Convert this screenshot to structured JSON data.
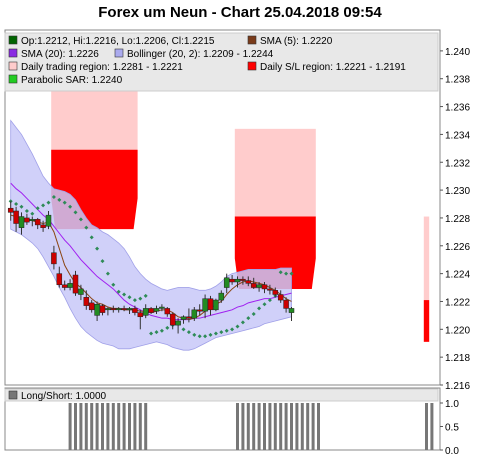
{
  "title": "Forex um Neun - Chart 25.04.2018 09:54",
  "legend": [
    {
      "label": "Op:1.2212, Hi:1.2216, Lo:1.2206, Cl:1.2215",
      "swatch": "#006400"
    },
    {
      "label": "SMA (5): 1.2220",
      "swatch": "#7a3b1a"
    },
    {
      "label": "SMA (20): 1.2226",
      "swatch": "#8a2be2"
    },
    {
      "label": "Bollinger (20, 2): 1.2209 - 1.2244",
      "swatch": "#aaaaee"
    },
    {
      "label": "Daily trading region: 1.2281 - 1.2221",
      "swatch": "#ffcccc"
    },
    {
      "label": "Daily S/L region: 1.2221 - 1.2191",
      "swatch": "#ff0000"
    },
    {
      "label": "Parabolic SAR: 1.2240",
      "swatch": "#22cc22"
    }
  ],
  "sub_legend": {
    "label": "Long/Short: 1.0000",
    "swatch": "#777777"
  },
  "colors": {
    "candle_up": "#228b22",
    "candle_down": "#cc0000",
    "sma5": "#8b4513",
    "sma20": "#a020f0",
    "bollinger_fill": "#c8c8f8",
    "bollinger_edge": "#a0a0e8",
    "trade_region": "#ffcccc",
    "sl_region": "#ff0000",
    "sar": "#2e8b57",
    "longshort": "#777777",
    "plot_bg": "#ffffff"
  },
  "chart_data": {
    "type": "candlestick",
    "title": "Forex um Neun - Chart 25.04.2018 09:54",
    "ylim": [
      1.216,
      1.2415
    ],
    "y_ticks": [
      "1.216",
      "1.218",
      "1.220",
      "1.222",
      "1.224",
      "1.226",
      "1.228",
      "1.230",
      "1.232",
      "1.234",
      "1.236",
      "1.238",
      "1.240"
    ],
    "candles": [
      {
        "o": 1.2287,
        "h": 1.2292,
        "l": 1.2278,
        "c": 1.2284
      },
      {
        "o": 1.2285,
        "h": 1.2288,
        "l": 1.227,
        "c": 1.2276
      },
      {
        "o": 1.2273,
        "h": 1.2284,
        "l": 1.2268,
        "c": 1.2281
      },
      {
        "o": 1.228,
        "h": 1.2283,
        "l": 1.2275,
        "c": 1.2277
      },
      {
        "o": 1.2278,
        "h": 1.2281,
        "l": 1.2274,
        "c": 1.2279
      },
      {
        "o": 1.2279,
        "h": 1.228,
        "l": 1.2272,
        "c": 1.2275
      },
      {
        "o": 1.2275,
        "h": 1.2278,
        "l": 1.227,
        "c": 1.2273
      },
      {
        "o": 1.2274,
        "h": 1.2285,
        "l": 1.2272,
        "c": 1.2282
      },
      {
        "o": 1.2255,
        "h": 1.226,
        "l": 1.2243,
        "c": 1.2247
      },
      {
        "o": 1.224,
        "h": 1.2245,
        "l": 1.223,
        "c": 1.2232
      },
      {
        "o": 1.2232,
        "h": 1.2235,
        "l": 1.2228,
        "c": 1.223
      },
      {
        "o": 1.223,
        "h": 1.2236,
        "l": 1.2228,
        "c": 1.2233
      },
      {
        "o": 1.2239,
        "h": 1.2242,
        "l": 1.2224,
        "c": 1.2226
      },
      {
        "o": 1.2225,
        "h": 1.2232,
        "l": 1.2221,
        "c": 1.2229
      },
      {
        "o": 1.2223,
        "h": 1.2228,
        "l": 1.2214,
        "c": 1.2217
      },
      {
        "o": 1.2219,
        "h": 1.2221,
        "l": 1.2212,
        "c": 1.2214
      },
      {
        "o": 1.221,
        "h": 1.222,
        "l": 1.2206,
        "c": 1.2218
      },
      {
        "o": 1.2217,
        "h": 1.2218,
        "l": 1.221,
        "c": 1.2212
      },
      {
        "o": 1.2214,
        "h": 1.2216,
        "l": 1.221,
        "c": 1.2215
      },
      {
        "o": 1.2215,
        "h": 1.2217,
        "l": 1.2212,
        "c": 1.2214
      },
      {
        "o": 1.2214,
        "h": 1.2216,
        "l": 1.2212,
        "c": 1.2215
      },
      {
        "o": 1.2215,
        "h": 1.2217,
        "l": 1.2213,
        "c": 1.2214
      },
      {
        "o": 1.2214,
        "h": 1.2216,
        "l": 1.2211,
        "c": 1.2215
      },
      {
        "o": 1.2215,
        "h": 1.2217,
        "l": 1.221,
        "c": 1.2212
      },
      {
        "o": 1.2212,
        "h": 1.2214,
        "l": 1.22,
        "c": 1.2209
      },
      {
        "o": 1.221,
        "h": 1.2218,
        "l": 1.2208,
        "c": 1.2215
      },
      {
        "o": 1.2215,
        "h": 1.2216,
        "l": 1.2211,
        "c": 1.2212
      },
      {
        "o": 1.2213,
        "h": 1.2217,
        "l": 1.2211,
        "c": 1.2215
      },
      {
        "o": 1.2215,
        "h": 1.2218,
        "l": 1.2213,
        "c": 1.2216
      },
      {
        "o": 1.2215,
        "h": 1.2216,
        "l": 1.2209,
        "c": 1.2211
      },
      {
        "o": 1.2211,
        "h": 1.2212,
        "l": 1.22,
        "c": 1.2203
      },
      {
        "o": 1.2203,
        "h": 1.2208,
        "l": 1.2197,
        "c": 1.2206
      },
      {
        "o": 1.2207,
        "h": 1.221,
        "l": 1.2204,
        "c": 1.2209
      },
      {
        "o": 1.2209,
        "h": 1.2215,
        "l": 1.2205,
        "c": 1.2208
      },
      {
        "o": 1.2208,
        "h": 1.2216,
        "l": 1.2206,
        "c": 1.2214
      },
      {
        "o": 1.2214,
        "h": 1.2218,
        "l": 1.221,
        "c": 1.2213
      },
      {
        "o": 1.2213,
        "h": 1.2225,
        "l": 1.2208,
        "c": 1.2222
      },
      {
        "o": 1.2222,
        "h": 1.2224,
        "l": 1.221,
        "c": 1.2214
      },
      {
        "o": 1.2214,
        "h": 1.2222,
        "l": 1.2213,
        "c": 1.2221
      },
      {
        "o": 1.2221,
        "h": 1.2228,
        "l": 1.2219,
        "c": 1.2226
      },
      {
        "o": 1.223,
        "h": 1.224,
        "l": 1.2226,
        "c": 1.2237
      },
      {
        "o": 1.2236,
        "h": 1.2239,
        "l": 1.2232,
        "c": 1.2234
      },
      {
        "o": 1.2234,
        "h": 1.2238,
        "l": 1.223,
        "c": 1.2236
      },
      {
        "o": 1.2236,
        "h": 1.2238,
        "l": 1.2232,
        "c": 1.2235
      },
      {
        "o": 1.2235,
        "h": 1.2238,
        "l": 1.2231,
        "c": 1.2233
      },
      {
        "o": 1.2233,
        "h": 1.2237,
        "l": 1.2229,
        "c": 1.223
      },
      {
        "o": 1.223,
        "h": 1.2234,
        "l": 1.2227,
        "c": 1.2232
      },
      {
        "o": 1.2232,
        "h": 1.2234,
        "l": 1.2226,
        "c": 1.2229
      },
      {
        "o": 1.2229,
        "h": 1.2232,
        "l": 1.2225,
        "c": 1.2228
      },
      {
        "o": 1.2228,
        "h": 1.223,
        "l": 1.2223,
        "c": 1.2225
      },
      {
        "o": 1.2225,
        "h": 1.2228,
        "l": 1.2219,
        "c": 1.2221
      },
      {
        "o": 1.2221,
        "h": 1.2223,
        "l": 1.2212,
        "c": 1.2215
      },
      {
        "o": 1.2212,
        "h": 1.2216,
        "l": 1.2206,
        "c": 1.2215
      }
    ],
    "sma5": [
      1.2282,
      1.2281,
      1.228,
      1.2279,
      1.2278,
      1.2277,
      1.2276,
      1.2277,
      1.227,
      1.2258,
      1.2246,
      1.2239,
      1.2233,
      1.223,
      1.2226,
      1.2222,
      1.2219,
      1.2218,
      1.2216,
      1.2215,
      1.2215,
      1.2214,
      1.2214,
      1.2214,
      1.2213,
      1.2213,
      1.2212,
      1.2213,
      1.2214,
      1.2214,
      1.2212,
      1.2209,
      1.2208,
      1.2207,
      1.2208,
      1.221,
      1.2213,
      1.2215,
      1.2218,
      1.222,
      1.2225,
      1.2229,
      1.2232,
      1.2234,
      1.2235,
      1.2234,
      1.2233,
      1.2232,
      1.223,
      1.2228,
      1.2225,
      1.2222,
      1.222
    ],
    "sma20": [
      1.2305,
      1.2301,
      1.2298,
      1.2294,
      1.229,
      1.2286,
      1.2282,
      1.2279,
      1.2274,
      1.2269,
      1.2264,
      1.226,
      1.2255,
      1.225,
      1.2246,
      1.2242,
      1.2238,
      1.2235,
      1.2232,
      1.2229,
      1.2225,
      1.2221,
      1.2218,
      1.2216,
      1.2214,
      1.2212,
      1.221,
      1.2209,
      1.2208,
      1.2208,
      1.2207,
      1.2207,
      1.2207,
      1.2207,
      1.2208,
      1.2208,
      1.2209,
      1.221,
      1.2211,
      1.2212,
      1.2213,
      1.2214,
      1.2216,
      1.2217,
      1.2219,
      1.222,
      1.2221,
      1.2222,
      1.2222,
      1.2223,
      1.2224,
      1.2225,
      1.2226
    ],
    "bollinger_upper": [
      1.235,
      1.2345,
      1.234,
      1.2333,
      1.2326,
      1.2318,
      1.231,
      1.2305,
      1.2301,
      1.23,
      1.2299,
      1.2297,
      1.2293,
      1.2286,
      1.228,
      1.2275,
      1.2273,
      1.227,
      1.2268,
      1.2265,
      1.2262,
      1.2258,
      1.2252,
      1.2245,
      1.224,
      1.2236,
      1.2233,
      1.2231,
      1.2229,
      1.2228,
      1.2229,
      1.223,
      1.223,
      1.223,
      1.2229,
      1.2228,
      1.2228,
      1.2229,
      1.2231,
      1.2234,
      1.2238,
      1.224,
      1.2241,
      1.2242,
      1.2243,
      1.2243,
      1.2243,
      1.2243,
      1.2243,
      1.2243,
      1.2244,
      1.2244,
      1.2244
    ],
    "bollinger_lower": [
      1.2272,
      1.227,
      1.2268,
      1.2265,
      1.2262,
      1.2258,
      1.2252,
      1.2245,
      1.2238,
      1.223,
      1.2223,
      1.2215,
      1.2208,
      1.2202,
      1.2198,
      1.2195,
      1.2192,
      1.219,
      1.2189,
      1.2188,
      1.2186,
      1.2186,
      1.2186,
      1.2187,
      1.2188,
      1.2189,
      1.219,
      1.2191,
      1.219,
      1.2189,
      1.2187,
      1.2186,
      1.2185,
      1.2185,
      1.2186,
      1.2188,
      1.219,
      1.2192,
      1.2194,
      1.2195,
      1.2196,
      1.2197,
      1.2198,
      1.2199,
      1.22,
      1.2201,
      1.2202,
      1.2204,
      1.2205,
      1.2206,
      1.2207,
      1.2208,
      1.2209
    ],
    "sar": [
      1.2292,
      1.229,
      1.2288,
      1.2285,
      1.2283,
      1.2287,
      1.2289,
      1.2291,
      1.2295,
      1.2293,
      1.2291,
      1.2288,
      1.2284,
      1.2279,
      1.2273,
      1.2266,
      1.2258,
      1.2249,
      1.224,
      1.2232,
      1.2227,
      1.2225,
      1.2223,
      1.2221,
      1.2222,
      1.2224,
      1.2197,
      1.2198,
      1.2199,
      1.2201,
      1.2203,
      1.2204,
      1.22,
      1.2198,
      1.2196,
      1.2195,
      1.2195,
      1.2196,
      1.2197,
      1.2198,
      1.2199,
      1.22,
      1.2202,
      1.2205,
      1.2208,
      1.2211,
      1.2215,
      1.2218,
      1.2221,
      1.2224,
      1.2241,
      1.224,
      1.224
    ],
    "trading_regions": [
      {
        "from_bar": 8,
        "to_bar": 24,
        "high": 1.239,
        "low": 1.2294
      },
      {
        "from_bar": 42,
        "to_bar": 57,
        "high": 1.2344,
        "low": 1.2281
      },
      {
        "from_bar": 77,
        "to_bar": 78,
        "high": 1.2281,
        "low": 1.2221
      }
    ],
    "sl_regions": [
      {
        "from_bar": 8,
        "to_bar": 24,
        "high": 1.2329,
        "low": 1.2294
      },
      {
        "from_bar": 42,
        "to_bar": 57,
        "high": 1.2281,
        "low": 1.2251
      },
      {
        "from_bar": 77,
        "to_bar": 78,
        "high": 1.2221,
        "low": 1.2191
      }
    ],
    "longshort": {
      "ylim": [
        0.0,
        1.0
      ],
      "y_ticks": [
        "0.0",
        "0.5",
        "1.0"
      ],
      "active_bars": [
        11,
        12,
        13,
        14,
        15,
        16,
        17,
        18,
        19,
        20,
        21,
        22,
        23,
        24,
        25,
        42,
        43,
        44,
        45,
        46,
        47,
        48,
        49,
        50,
        51,
        52,
        53,
        54,
        55,
        56,
        57,
        77,
        78
      ]
    }
  }
}
